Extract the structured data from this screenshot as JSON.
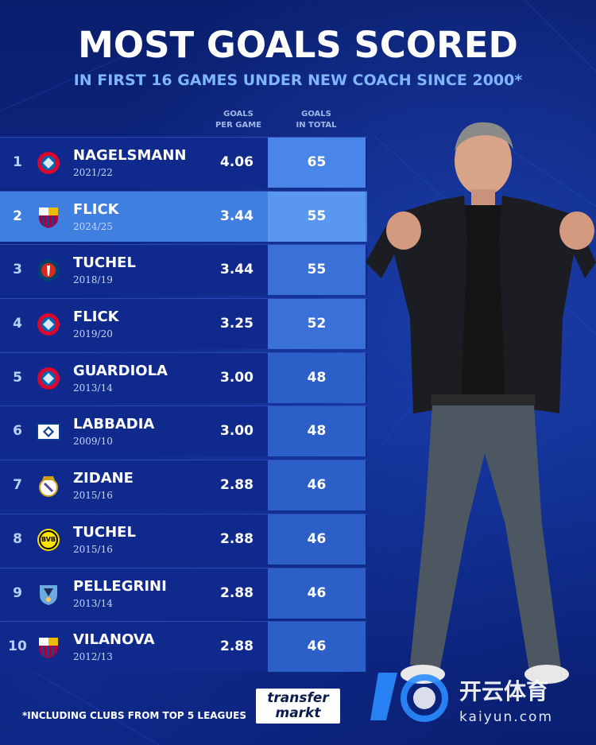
{
  "title": "MOST GOALS SCORED",
  "subtitle": "IN FIRST 16 GAMES UNDER NEW COACH SINCE 2000*",
  "columns": {
    "gpg": [
      "GOALS",
      "PER GAME"
    ],
    "total": [
      "GOALS",
      "IN TOTAL"
    ]
  },
  "rows": [
    {
      "rank": "1",
      "name": "NAGELSMANN",
      "season": "2021/22",
      "gpg": "4.06",
      "total": "65",
      "club": "bayern-crest-icon"
    },
    {
      "rank": "2",
      "name": "FLICK",
      "season": "2024/25",
      "gpg": "3.44",
      "total": "55",
      "club": "barcelona-crest-icon"
    },
    {
      "rank": "3",
      "name": "TUCHEL",
      "season": "2018/19",
      "gpg": "3.44",
      "total": "55",
      "club": "psg-crest-icon"
    },
    {
      "rank": "4",
      "name": "FLICK",
      "season": "2019/20",
      "gpg": "3.25",
      "total": "52",
      "club": "bayern-crest-icon"
    },
    {
      "rank": "5",
      "name": "GUARDIOLA",
      "season": "2013/14",
      "gpg": "3.00",
      "total": "48",
      "club": "bayern-crest-icon"
    },
    {
      "rank": "6",
      "name": "LABBADIA",
      "season": "2009/10",
      "gpg": "3.00",
      "total": "48",
      "club": "hamburg-crest-icon"
    },
    {
      "rank": "7",
      "name": "ZIDANE",
      "season": "2015/16",
      "gpg": "2.88",
      "total": "46",
      "club": "real-madrid-crest-icon"
    },
    {
      "rank": "8",
      "name": "TUCHEL",
      "season": "2015/16",
      "gpg": "2.88",
      "total": "46",
      "club": "dortmund-crest-icon"
    },
    {
      "rank": "9",
      "name": "PELLEGRINI",
      "season": "2013/14",
      "gpg": "2.88",
      "total": "46",
      "club": "man-city-crest-icon"
    },
    {
      "rank": "10",
      "name": "VILANOVA",
      "season": "2012/13",
      "gpg": "2.88",
      "total": "46",
      "club": "barcelona-crest-icon"
    }
  ],
  "highlight_rank": "2",
  "footnote": "*INCLUDING CLUBS FROM TOP 5 LEAGUES",
  "logo": {
    "line1": "transfer",
    "line2": "markt"
  },
  "watermark": {
    "cn": "开云体育",
    "en": "kaiyun.com"
  },
  "colors": {
    "background": "#0b1f72",
    "row": "#0f2a8c",
    "highlight_row": "#3f7fe0",
    "total_cell": "#2d5fc9",
    "subtitle": "#7fb6ff"
  }
}
